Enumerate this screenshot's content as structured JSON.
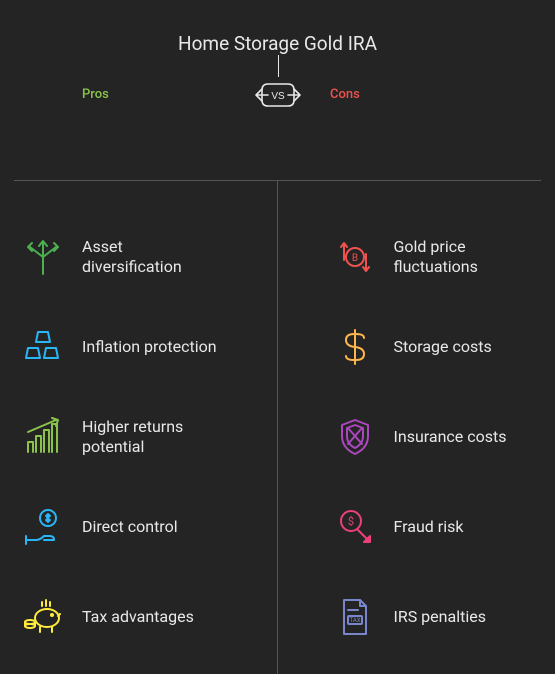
{
  "title": "Home Storage Gold IRA",
  "vs_text": "VS",
  "pros_label": "Pros",
  "cons_label": "Cons",
  "colors": {
    "bg": "#242424",
    "text": "#e8e8e8",
    "pros_label": "#8bc34a",
    "cons_label": "#ef5350",
    "divider": "#555555",
    "vs_stroke": "#e8e8e8"
  },
  "pros": [
    {
      "label": "Asset diversification",
      "icon": "branch",
      "color": "#4caf50"
    },
    {
      "label": "Inflation protection",
      "icon": "gold",
      "color": "#29b6f6"
    },
    {
      "label": "Higher returns potential",
      "icon": "chart",
      "color": "#8bc34a"
    },
    {
      "label": "Direct control",
      "icon": "hand",
      "color": "#29b6f6"
    },
    {
      "label": "Tax advantages",
      "icon": "piggy",
      "color": "#ffeb3b"
    }
  ],
  "cons": [
    {
      "label": "Gold price fluctuations",
      "icon": "fluct",
      "color": "#ef5350"
    },
    {
      "label": "Storage costs",
      "icon": "dollar",
      "color": "#ffb74d"
    },
    {
      "label": "Insurance costs",
      "icon": "shield",
      "color": "#ab47bc"
    },
    {
      "label": "Fraud risk",
      "icon": "fraud",
      "color": "#ec407a"
    },
    {
      "label": "IRS penalties",
      "icon": "tax",
      "color": "#7986cb"
    }
  ]
}
